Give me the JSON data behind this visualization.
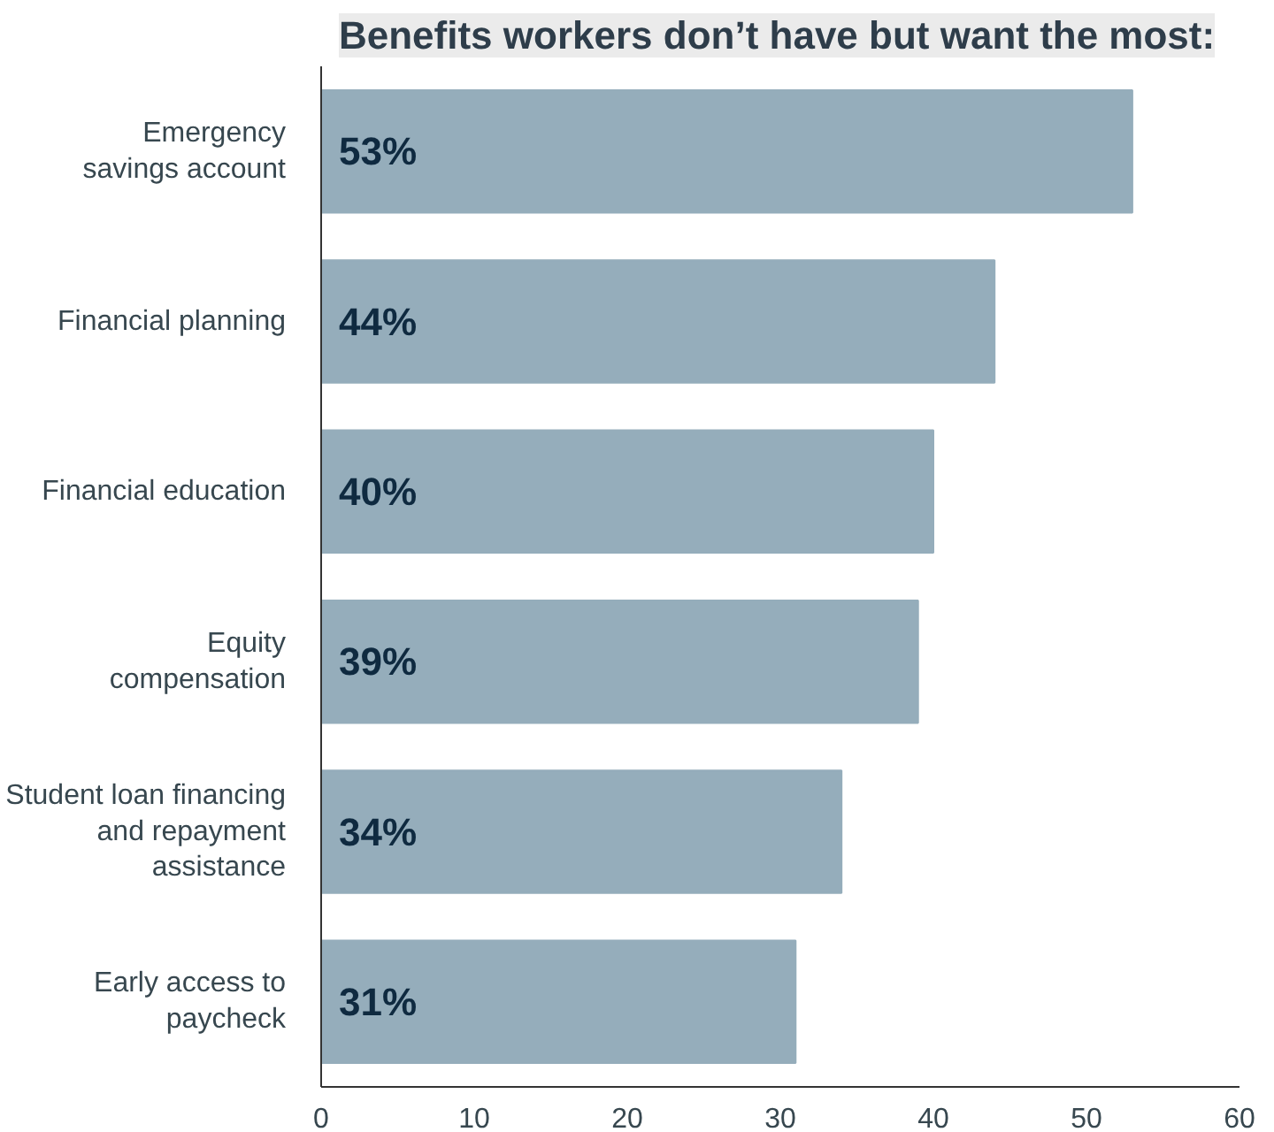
{
  "chart_data": {
    "type": "bar",
    "orientation": "horizontal",
    "title": "Benefits workers don’t have but want the most:",
    "categories": [
      "Emergency\nsavings account",
      "Financial planning",
      "Financial education",
      "Equity\ncompensation",
      "Student loan financing\nand repayment\nassistance",
      "Early access to\npaycheck"
    ],
    "values": [
      53,
      44,
      40,
      39,
      34,
      31
    ],
    "value_labels": [
      "53%",
      "44%",
      "40%",
      "39%",
      "34%",
      "31%"
    ],
    "color": "#95adbb",
    "xlim": [
      0,
      60
    ],
    "xticks": [
      0,
      10,
      20,
      30,
      40,
      50,
      60
    ],
    "grid": false
  }
}
